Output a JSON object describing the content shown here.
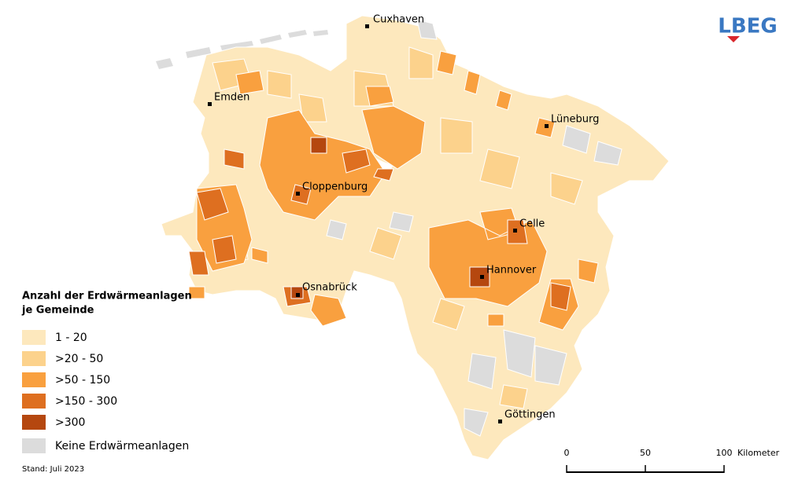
{
  "logo": "LBEG",
  "cities": [
    "Cuxhaven",
    "Emden",
    "Lüneburg",
    "Cloppenburg",
    "Celle",
    "Hannover",
    "Osnabrück",
    "Göttingen"
  ],
  "legend": {
    "title": [
      "Anzahl der Erdwärmeanlagen",
      "je Gemeinde"
    ],
    "items": [
      {
        "label": "1 - 20",
        "color": "#fde8bd"
      },
      {
        "label": ">20 - 50",
        "color": "#fcd28c"
      },
      {
        "label": ">50 - 150",
        "color": "#f9a03f"
      },
      {
        "label": ">150 - 300",
        "color": "#de6f20"
      },
      {
        "label": ">300",
        "color": "#b5470f"
      },
      {
        "label": "Keine Erdwärmeanlagen",
        "color": "#dcdcdc"
      }
    ]
  },
  "scale": {
    "ticks": [
      0,
      50,
      100
    ],
    "unit": "Kilometer"
  },
  "footer": "Stand: Juli 2023"
}
